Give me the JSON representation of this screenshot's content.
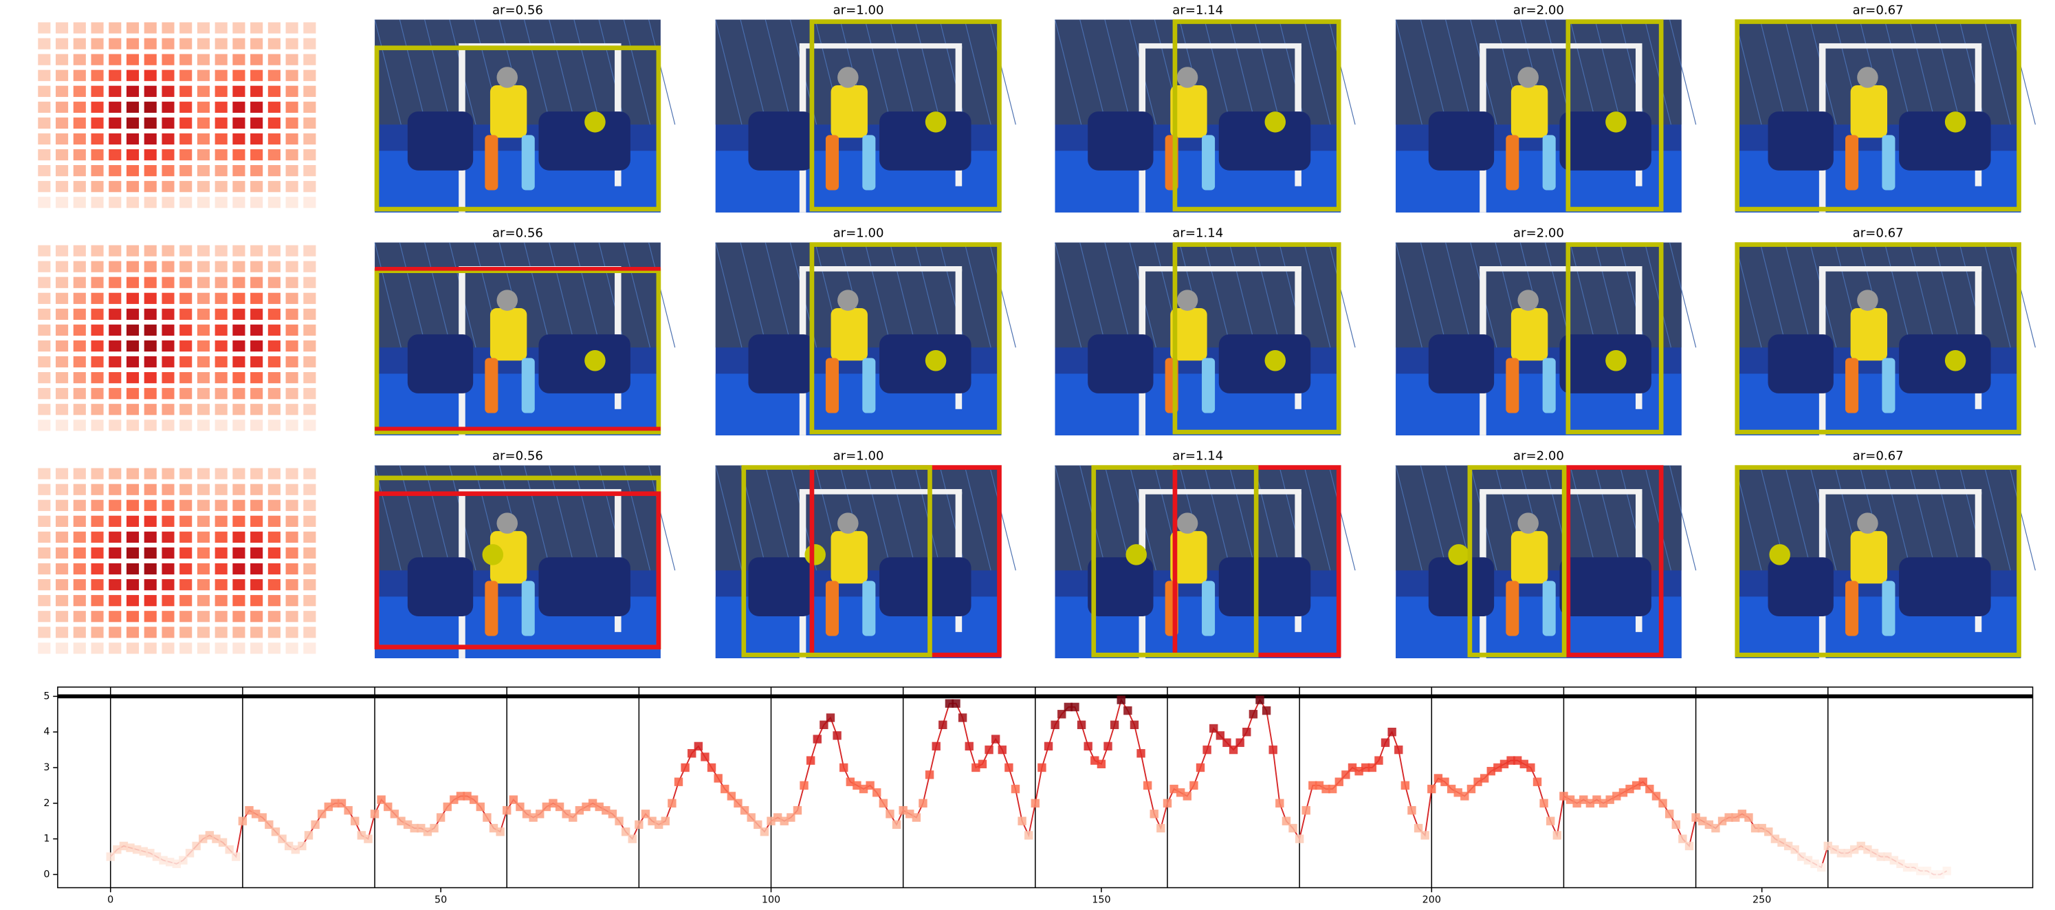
{
  "panels": {
    "titles": [
      [
        "ar=0.56",
        "ar=1.00",
        "ar=1.14",
        "ar=2.00",
        "ar=0.67"
      ],
      [
        "ar=0.56",
        "ar=1.00",
        "ar=1.14",
        "ar=2.00",
        "ar=0.67"
      ],
      [
        "ar=0.56",
        "ar=1.00",
        "ar=1.14",
        "ar=2.00",
        "ar=0.67"
      ]
    ]
  },
  "chart_data": {
    "type": "line",
    "colormap": "Reds",
    "clim": [
      0,
      5
    ],
    "line_color": "#d62728",
    "xlim": [
      -8,
      291
    ],
    "ylim": [
      -0.37,
      5.26
    ],
    "xticks": [
      0,
      50,
      100,
      150,
      200,
      250
    ],
    "yticks": [
      0,
      1,
      2,
      3,
      4,
      5
    ],
    "vlines": [
      0,
      20,
      40,
      60,
      80,
      100,
      120,
      140,
      160,
      180,
      200,
      220,
      240,
      260
    ],
    "hline": 5,
    "x": [
      0,
      1,
      2,
      3,
      4,
      5,
      6,
      7,
      8,
      9,
      10,
      11,
      12,
      13,
      14,
      15,
      16,
      17,
      18,
      19,
      20,
      21,
      22,
      23,
      24,
      25,
      26,
      27,
      28,
      29,
      30,
      31,
      32,
      33,
      34,
      35,
      36,
      37,
      38,
      39,
      40,
      41,
      42,
      43,
      44,
      45,
      46,
      47,
      48,
      49,
      50,
      51,
      52,
      53,
      54,
      55,
      56,
      57,
      58,
      59,
      60,
      61,
      62,
      63,
      64,
      65,
      66,
      67,
      68,
      69,
      70,
      71,
      72,
      73,
      74,
      75,
      76,
      77,
      78,
      79,
      80,
      81,
      82,
      83,
      84,
      85,
      86,
      87,
      88,
      89,
      90,
      91,
      92,
      93,
      94,
      95,
      96,
      97,
      98,
      99,
      100,
      101,
      102,
      103,
      104,
      105,
      106,
      107,
      108,
      109,
      110,
      111,
      112,
      113,
      114,
      115,
      116,
      117,
      118,
      119,
      120,
      121,
      122,
      123,
      124,
      125,
      126,
      127,
      128,
      129,
      130,
      131,
      132,
      133,
      134,
      135,
      136,
      137,
      138,
      139,
      140,
      141,
      142,
      143,
      144,
      145,
      146,
      147,
      148,
      149,
      150,
      151,
      152,
      153,
      154,
      155,
      156,
      157,
      158,
      159,
      160,
      161,
      162,
      163,
      164,
      165,
      166,
      167,
      168,
      169,
      170,
      171,
      172,
      173,
      174,
      175,
      176,
      177,
      178,
      179,
      180,
      181,
      182,
      183,
      184,
      185,
      186,
      187,
      188,
      189,
      190,
      191,
      192,
      193,
      194,
      195,
      196,
      197,
      198,
      199,
      200,
      201,
      202,
      203,
      204,
      205,
      206,
      207,
      208,
      209,
      210,
      211,
      212,
      213,
      214,
      215,
      216,
      217,
      218,
      219,
      220,
      221,
      222,
      223,
      224,
      225,
      226,
      227,
      228,
      229,
      230,
      231,
      232,
      233,
      234,
      235,
      236,
      237,
      238,
      239,
      240,
      241,
      242,
      243,
      244,
      245,
      246,
      247,
      248,
      249,
      250,
      251,
      252,
      253,
      254,
      255,
      256,
      257,
      258,
      259,
      260,
      261,
      262,
      263,
      264,
      265,
      266,
      267,
      268,
      269,
      270,
      271,
      272,
      273,
      274,
      275,
      276,
      277,
      278
    ],
    "values": [
      0.5,
      0.7,
      0.8,
      0.75,
      0.7,
      0.65,
      0.6,
      0.5,
      0.4,
      0.35,
      0.3,
      0.4,
      0.6,
      0.8,
      1.0,
      1.1,
      1.0,
      0.9,
      0.7,
      0.5,
      1.5,
      1.8,
      1.7,
      1.6,
      1.4,
      1.2,
      1.0,
      0.8,
      0.7,
      0.8,
      1.1,
      1.4,
      1.7,
      1.9,
      2.0,
      2.0,
      1.8,
      1.5,
      1.1,
      1.0,
      1.7,
      2.1,
      1.9,
      1.7,
      1.5,
      1.4,
      1.3,
      1.3,
      1.2,
      1.3,
      1.6,
      1.9,
      2.1,
      2.2,
      2.2,
      2.1,
      1.9,
      1.6,
      1.3,
      1.2,
      1.8,
      2.1,
      1.9,
      1.7,
      1.6,
      1.7,
      1.9,
      2.0,
      1.9,
      1.7,
      1.6,
      1.8,
      1.9,
      2.0,
      1.9,
      1.8,
      1.7,
      1.5,
      1.2,
      1.0,
      1.4,
      1.7,
      1.5,
      1.4,
      1.5,
      2.0,
      2.6,
      3.0,
      3.4,
      3.6,
      3.3,
      3.0,
      2.7,
      2.4,
      2.2,
      2.0,
      1.8,
      1.6,
      1.4,
      1.2,
      1.5,
      1.6,
      1.5,
      1.6,
      1.8,
      2.5,
      3.2,
      3.8,
      4.2,
      4.4,
      3.9,
      3.0,
      2.6,
      2.5,
      2.4,
      2.5,
      2.3,
      2.0,
      1.7,
      1.4,
      1.8,
      1.7,
      1.6,
      2.0,
      2.8,
      3.6,
      4.2,
      4.8,
      4.8,
      4.4,
      3.6,
      3.0,
      3.1,
      3.5,
      3.8,
      3.5,
      3.0,
      2.4,
      1.5,
      1.1,
      2.0,
      3.0,
      3.6,
      4.2,
      4.5,
      4.7,
      4.7,
      4.2,
      3.6,
      3.2,
      3.1,
      3.6,
      4.2,
      4.9,
      4.6,
      4.2,
      3.4,
      2.5,
      1.7,
      1.3,
      2.0,
      2.4,
      2.3,
      2.2,
      2.5,
      3.0,
      3.5,
      4.1,
      3.9,
      3.7,
      3.5,
      3.7,
      4.0,
      4.5,
      4.9,
      4.6,
      3.5,
      2.0,
      1.5,
      1.3,
      1.0,
      1.8,
      2.5,
      2.5,
      2.4,
      2.4,
      2.6,
      2.8,
      3.0,
      2.9,
      3.0,
      3.0,
      3.2,
      3.7,
      4.0,
      3.5,
      2.5,
      1.8,
      1.3,
      1.1,
      2.4,
      2.7,
      2.6,
      2.4,
      2.3,
      2.2,
      2.4,
      2.6,
      2.7,
      2.9,
      3.0,
      3.1,
      3.2,
      3.2,
      3.1,
      3.0,
      2.6,
      2.0,
      1.5,
      1.1,
      2.2,
      2.1,
      2.0,
      2.1,
      2.0,
      2.1,
      2.0,
      2.1,
      2.2,
      2.3,
      2.4,
      2.5,
      2.6,
      2.4,
      2.2,
      2.0,
      1.7,
      1.4,
      1.0,
      0.8,
      1.6,
      1.5,
      1.4,
      1.3,
      1.5,
      1.6,
      1.6,
      1.7,
      1.6,
      1.3,
      1.3,
      1.2,
      1.0,
      0.9,
      0.8,
      0.7,
      0.5,
      0.4,
      0.3,
      0.2,
      0.8,
      0.7,
      0.6,
      0.6,
      0.7,
      0.8,
      0.7,
      0.6,
      0.5,
      0.5,
      0.4,
      0.3,
      0.2,
      0.2,
      0.1,
      0.1,
      0.0,
      0.0,
      0.1
    ]
  }
}
